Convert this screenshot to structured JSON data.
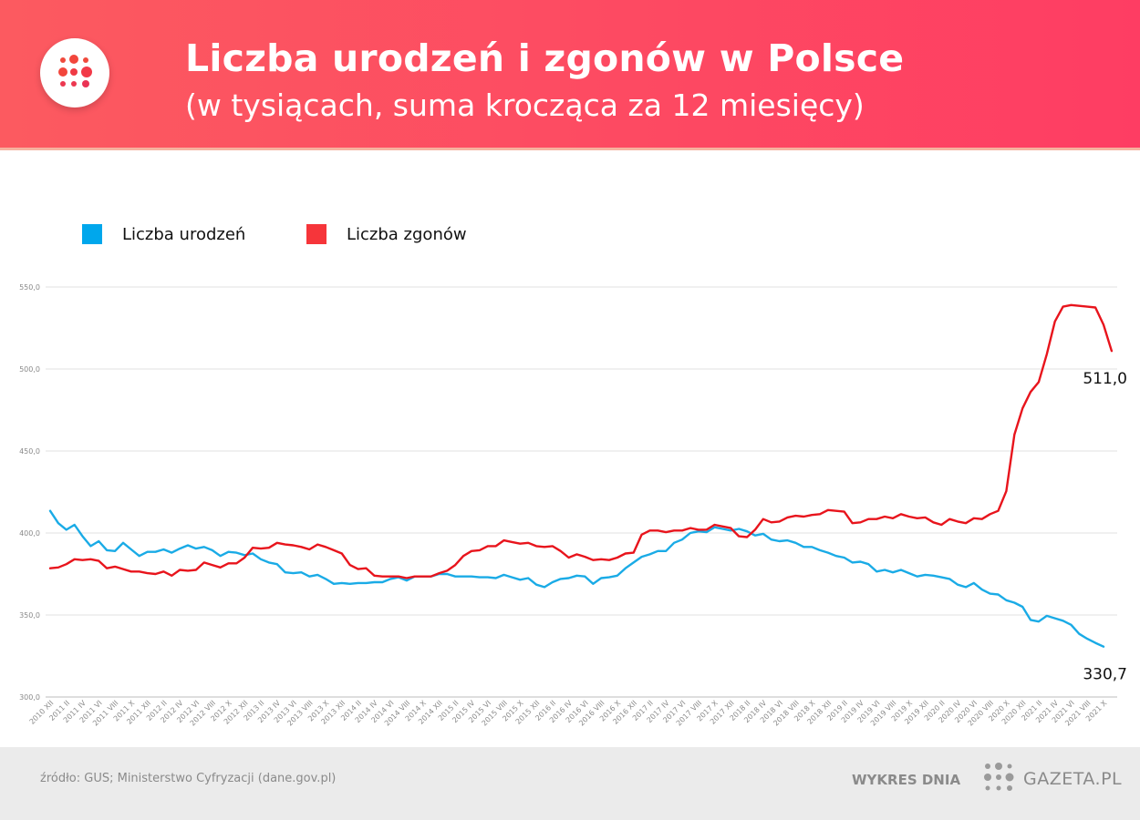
{
  "header": {
    "title": "Liczba urodzeń i zgonów w Polsce",
    "subtitle": "(w tysiącach, suma krocząca za 12 miesięcy)",
    "logo_icon": "dots-logo-icon"
  },
  "colors": {
    "header_start": "#fc5a60",
    "header_end": "#fe3d63",
    "births": "#1aabe6",
    "deaths": "#e8141c",
    "legend_births": "#00a7ec",
    "legend_deaths": "#f6353a"
  },
  "legend": [
    {
      "label": "Liczba urodzeń",
      "color": "#00a7ec"
    },
    {
      "label": "Liczba zgonów",
      "color": "#f6353a"
    }
  ],
  "chart_data": {
    "type": "line",
    "title": "Liczba urodzeń i zgonów w Polsce",
    "subtitle": "(w tysiącach, suma krocząca za 12 miesięcy)",
    "xlabel": "",
    "ylabel": "",
    "ylim": [
      300,
      550
    ],
    "yticks": [
      "300,0",
      "350,0",
      "400,0",
      "450,0",
      "500,0",
      "550,0"
    ],
    "grid": "horizontal",
    "legend_position": "top-left",
    "x_tick_labels": [
      "2010 XII",
      "2011 II",
      "2011 IV",
      "2011 VI",
      "2011 VIII",
      "2011 X",
      "2011 XII",
      "2012 II",
      "2012 IV",
      "2012 VI",
      "2012 VIII",
      "2012 X",
      "2012 XII",
      "2013 II",
      "2013 IV",
      "2013 VI",
      "2013 VIII",
      "2013 X",
      "2013 XII",
      "2014 II",
      "2014 IV",
      "2014 VI",
      "2014 VIII",
      "2014 X",
      "2014 XII",
      "2015 II",
      "2015 IV",
      "2015 VI",
      "2015 VIII",
      "2015 X",
      "2015 XII",
      "2016 II",
      "2016 IV",
      "2016 VI",
      "2016 VIII",
      "2016 X",
      "2016 XII",
      "2017 II",
      "2017 IV",
      "2017 VI",
      "2017 VIII",
      "2017 X",
      "2017 XII",
      "2018 II",
      "2018 IV",
      "2018 VI",
      "2018 VIII",
      "2018 X",
      "2018 XII",
      "2019 II",
      "2019 IV",
      "2019 VI",
      "2019 VIII",
      "2019 X",
      "2019 XII",
      "2020 II",
      "2020 IV",
      "2020 VI",
      "2020 VIII",
      "2020 X",
      "2020 XII",
      "2021 II",
      "2021 IV",
      "2021 VI",
      "2021 VIII",
      "2021 X"
    ],
    "series": [
      {
        "name": "Liczba urodzeń",
        "color": "#1aabe6",
        "end_label": "330,7",
        "values": [
          413.5,
          406,
          402,
          405,
          398,
          392,
          395,
          389.5,
          389,
          394,
          390,
          386,
          388.5,
          388.5,
          390,
          388,
          390.5,
          392.5,
          390.5,
          391.5,
          389.5,
          386,
          388.5,
          388,
          386.5,
          387.5,
          384,
          382,
          381,
          376,
          375.5,
          376,
          373.5,
          374.5,
          372,
          369,
          369.5,
          369,
          369.5,
          369.5,
          370,
          370,
          372,
          373,
          371,
          373.5,
          373.5,
          373.5,
          375,
          375,
          373.5,
          373.5,
          373.5,
          373,
          373,
          372.5,
          374.5,
          373,
          371.5,
          372.5,
          368.5,
          367,
          370,
          372,
          372.5,
          374,
          373.5,
          369,
          372.5,
          373,
          374,
          378.5,
          382,
          385.5,
          387,
          389,
          389,
          394,
          396,
          400,
          401,
          400.5,
          403.5,
          402.5,
          401.5,
          402.5,
          401,
          398.5,
          399.5,
          396,
          395,
          395.5,
          394,
          391.5,
          391.5,
          389.5,
          388,
          386,
          385,
          382,
          382.5,
          381,
          376.5,
          377.5,
          376,
          377.5,
          375.5,
          373.5,
          374.5,
          374,
          373,
          372,
          368.5,
          367,
          369.5,
          365.5,
          363,
          362.5,
          359,
          357.5,
          355,
          347,
          346,
          349.5,
          348,
          346.5,
          344,
          338.5,
          335.5,
          333,
          330.7
        ]
      },
      {
        "name": "Liczba zgonów",
        "color": "#e8141c",
        "end_label": "511,0",
        "values": [
          378.5,
          379,
          381,
          384,
          383.5,
          384,
          383,
          378.5,
          379.5,
          378,
          376.5,
          376.5,
          375.5,
          375,
          376.5,
          374,
          377.5,
          377,
          377.5,
          382,
          380.5,
          379,
          381.5,
          381.5,
          385,
          391,
          390.5,
          391,
          394,
          393,
          392.5,
          391.5,
          390,
          393,
          391.5,
          389.5,
          387.5,
          380.5,
          378,
          378.5,
          374,
          373.5,
          373.5,
          373.5,
          372.5,
          373.5,
          373.5,
          373.5,
          375.5,
          377,
          380.5,
          386,
          389,
          389.5,
          392,
          392,
          395.5,
          394.5,
          393.5,
          394,
          392,
          391.5,
          392,
          389,
          385,
          387,
          385.5,
          383.5,
          384,
          383.5,
          385,
          387.5,
          388,
          399,
          401.5,
          401.5,
          400.5,
          401.5,
          401.5,
          403,
          402,
          402,
          405,
          404,
          403,
          398,
          397.5,
          402,
          408.5,
          406.5,
          407,
          409.5,
          410.5,
          410,
          411,
          411.5,
          414,
          413.5,
          413,
          406,
          406.5,
          408.5,
          408.5,
          410,
          409,
          411.5,
          410,
          409,
          409.5,
          406.5,
          405,
          408.5,
          407,
          406,
          409,
          408.5,
          411.5,
          413.5,
          425.5,
          460,
          476,
          486,
          492,
          509,
          529,
          538,
          539,
          538.5,
          538,
          537.5,
          527,
          511
        ]
      }
    ]
  },
  "footer": {
    "source": "źródło: GUS; Ministerstwo Cyfryzacji (dane.gov.pl)",
    "section": "WYKRES DNIA",
    "brand": "GAZETA.PL",
    "brand_icon": "gazeta-dots-icon"
  }
}
